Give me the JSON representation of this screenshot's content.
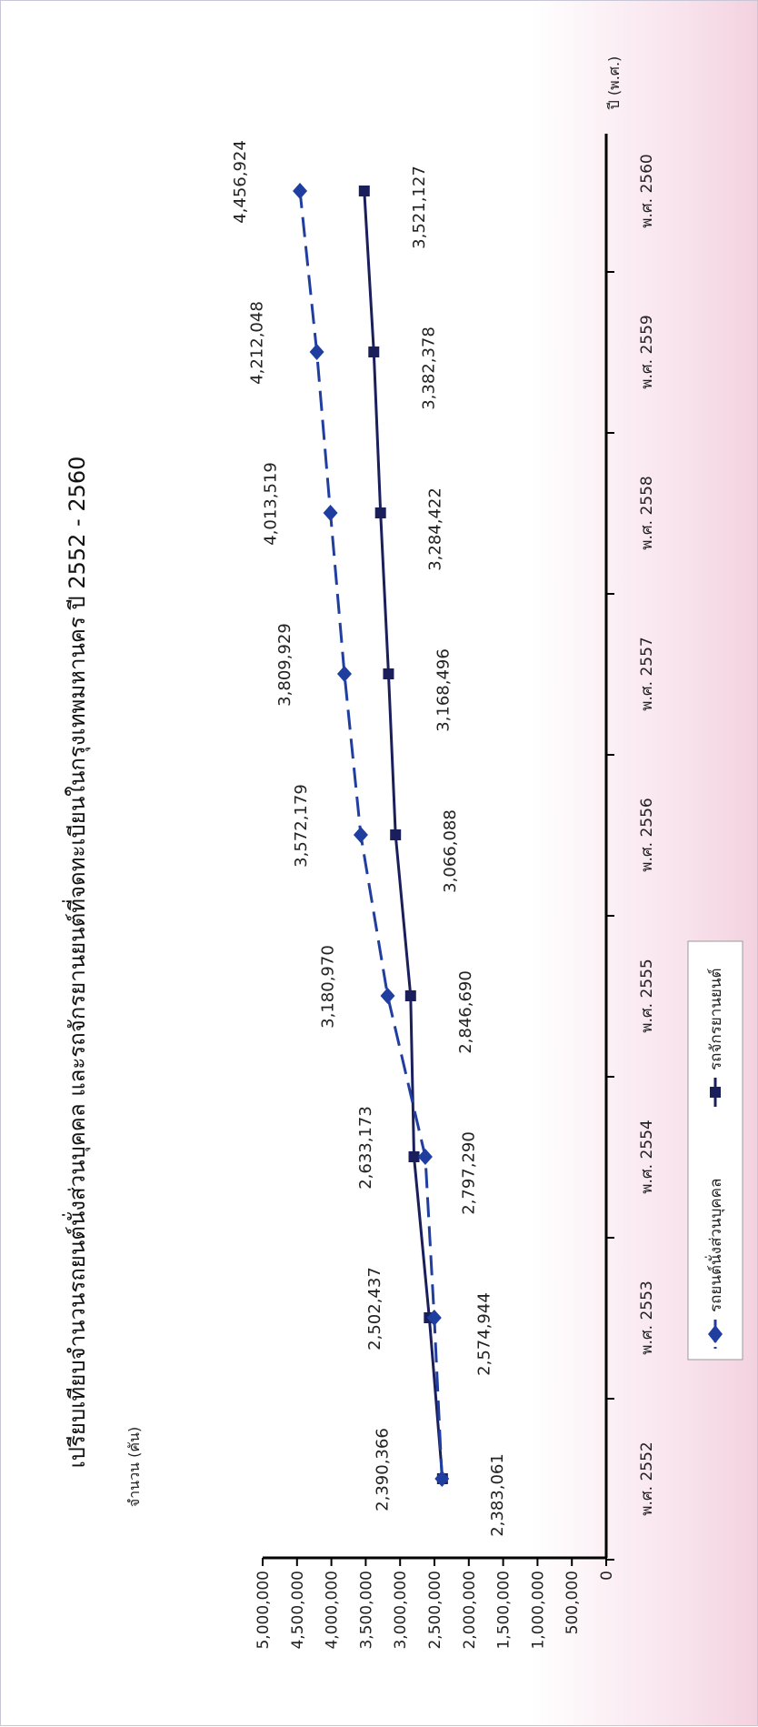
{
  "chart_data": {
    "type": "line",
    "title": "เปรียบเทียบจำนวนรถยนต์นั่งส่วนบุคคล และรถจักรยานยนต์ที่จดทะเบียนในกรุงเทพมหานคร ปี 2552 - 2560",
    "ylabel": "จำนวน (คัน)",
    "xlabel": "ปี (พ.ศ.)",
    "categories": [
      "พ.ศ. 2552",
      "พ.ศ. 2553",
      "พ.ศ. 2554",
      "พ.ศ. 2555",
      "พ.ศ. 2556",
      "พ.ศ. 2557",
      "พ.ศ. 2558",
      "พ.ศ. 2559",
      "พ.ศ. 2560"
    ],
    "ylim": [
      0,
      5000000
    ],
    "y_ticks": [
      0,
      500000,
      1000000,
      1500000,
      2000000,
      2500000,
      3000000,
      3500000,
      4000000,
      4500000,
      5000000
    ],
    "y_tick_labels": [
      "0",
      "500,000",
      "1,000,000",
      "1,500,000",
      "2,000,000",
      "2,500,000",
      "3,000,000",
      "3,500,000",
      "4,000,000",
      "4,500,000",
      "5,000,000"
    ],
    "orientation": "rotated 90° clockwise (categories run top-to-bottom on page)",
    "grid": false,
    "legend_position": "bottom",
    "series": [
      {
        "name": "รถยนต์นั่งส่วนบุคคล",
        "marker": "diamond",
        "line_style": "dashed",
        "color": "#1f3ea0",
        "values": [
          2390366,
          2502437,
          2633173,
          3180970,
          3572179,
          3809929,
          4013519,
          4212048,
          4456924
        ],
        "labels": [
          "2,390,366",
          "2,502,437",
          "2,633,173",
          "3,180,970",
          "3,572,179",
          "3,809,929",
          "4,013,519",
          "4,212,048",
          "4,456,924"
        ]
      },
      {
        "name": "รถจักรยานยนต์",
        "marker": "square",
        "line_style": "solid",
        "color": "#1a1f5c",
        "values": [
          2383061,
          2574944,
          2797290,
          2846690,
          3066088,
          3168496,
          3284422,
          3382378,
          3521127
        ],
        "labels": [
          "2,383,061",
          "2,574,944",
          "2,797,290",
          "2,846,690",
          "3,066,088",
          "3,168,496",
          "3,284,422",
          "3,382,378",
          "3,521,127"
        ]
      }
    ]
  },
  "legend": {
    "items": [
      "รถยนต์นั่งส่วนบุคคล",
      "รถจักรยานยนต์"
    ]
  }
}
